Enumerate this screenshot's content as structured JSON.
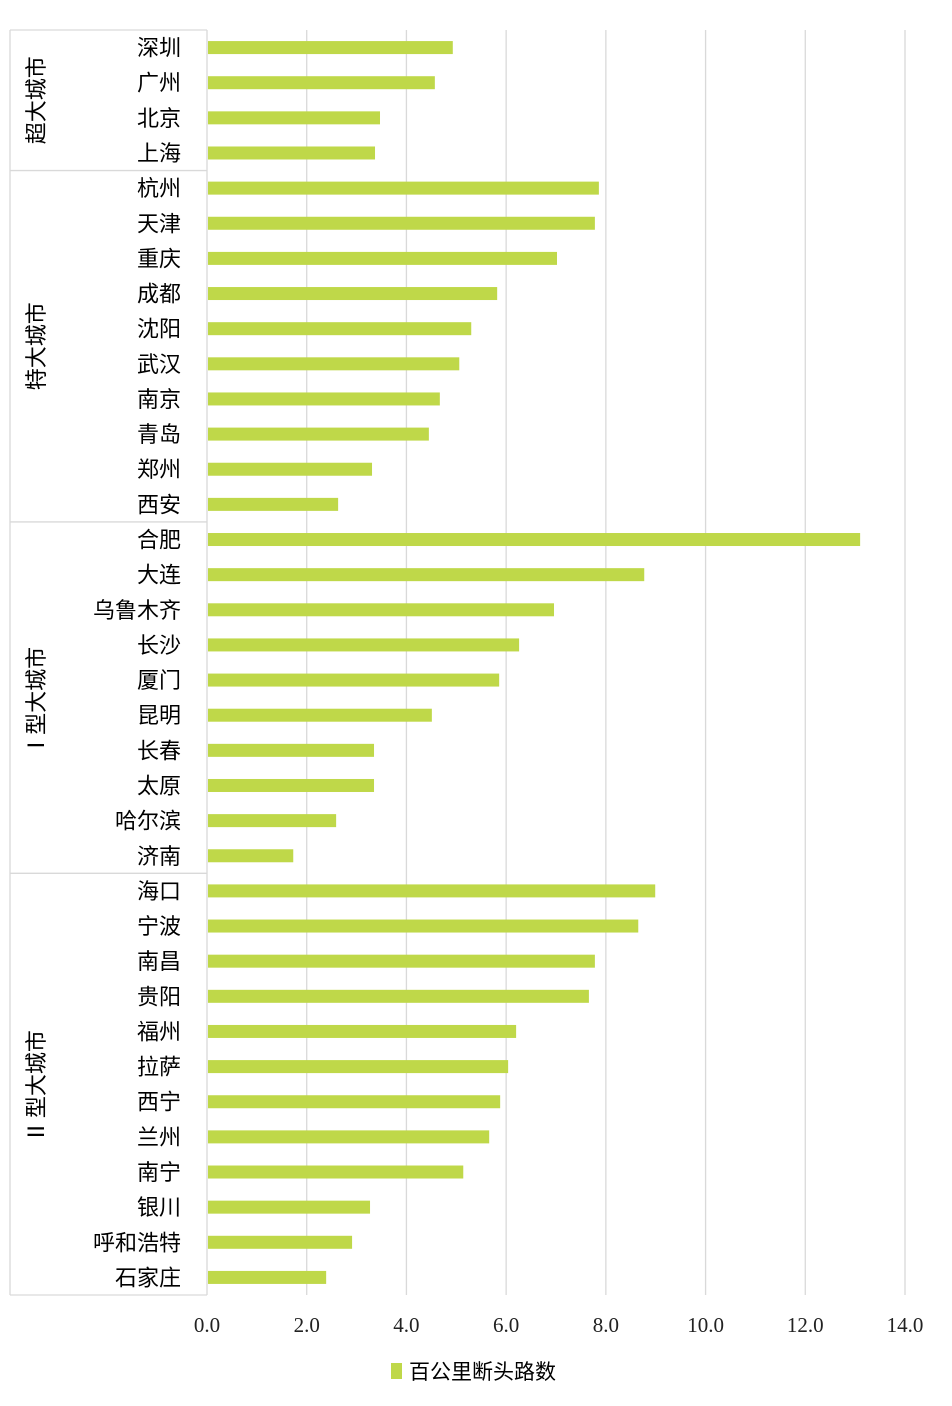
{
  "chart_data": {
    "type": "bar",
    "orientation": "horizontal",
    "title": "",
    "xlabel": "",
    "ylabel": "",
    "xlim": [
      0,
      14
    ],
    "xticks": [
      "0.0",
      "2.0",
      "4.0",
      "6.0",
      "8.0",
      "10.0",
      "12.0",
      "14.0"
    ],
    "grid": "vertical",
    "legend_position": "bottom",
    "bar_color": "#BFD849",
    "grid_color": "#D9D9D9",
    "groups": [
      {
        "label": "超大城市",
        "categories": [
          "深圳",
          "广州",
          "北京",
          "上海"
        ],
        "values": [
          4.93,
          4.57,
          3.47,
          3.37
        ]
      },
      {
        "label": "特大城市",
        "categories": [
          "杭州",
          "天津",
          "重庆",
          "成都",
          "沈阳",
          "武汉",
          "南京",
          "青岛",
          "郑州",
          "西安"
        ],
        "values": [
          7.86,
          7.78,
          7.02,
          5.82,
          5.3,
          5.06,
          4.67,
          4.45,
          3.31,
          2.63
        ]
      },
      {
        "label": "I 型大城市",
        "categories": [
          "合肥",
          "大连",
          "乌鲁木齐",
          "长沙",
          "厦门",
          "昆明",
          "长春",
          "太原",
          "哈尔滨",
          "济南"
        ],
        "values": [
          13.1,
          8.77,
          6.96,
          6.26,
          5.86,
          4.51,
          3.35,
          3.35,
          2.59,
          1.73
        ]
      },
      {
        "label": "II 型大城市",
        "categories": [
          "海口",
          "宁波",
          "南昌",
          "贵阳",
          "福州",
          "拉萨",
          "西宁",
          "兰州",
          "南宁",
          "银川",
          "呼和浩特",
          "石家庄"
        ],
        "values": [
          8.99,
          8.65,
          7.78,
          7.66,
          6.2,
          6.04,
          5.88,
          5.66,
          5.14,
          3.27,
          2.91,
          2.39
        ]
      }
    ],
    "series": [
      {
        "name": "百公里断头路数"
      }
    ]
  }
}
